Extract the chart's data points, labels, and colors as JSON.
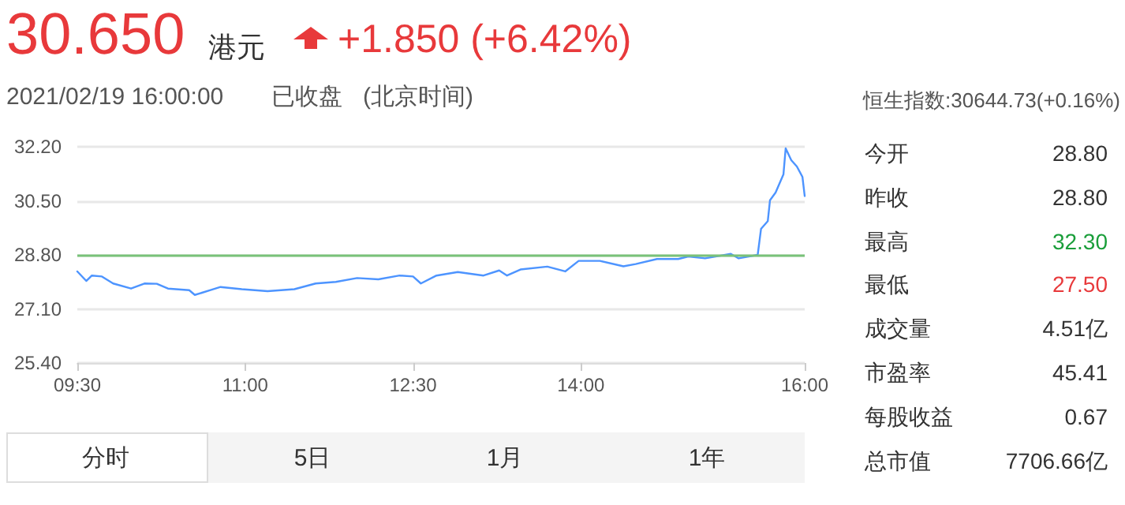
{
  "chart_data": {
    "type": "line",
    "title": "30.650",
    "annotations": [
      "港元",
      "+1.850 (+6.42%)",
      "2021/02/19 16:00:00",
      "已收盘",
      "(北京时间)",
      "恒生指数:30644.73(+0.16%)",
      "今开",
      "28.80",
      "昨收",
      "28.80",
      "最高",
      "32.30",
      "最低",
      "27.50",
      "成交量",
      "4.51亿",
      "市盈率",
      "45.41",
      "每股收益",
      "0.67",
      "总市值",
      "7706.66亿",
      "分时",
      "5日",
      "1月",
      "1年"
    ],
    "x": [
      9.5,
      9.58,
      9.63,
      9.72,
      9.82,
      9.98,
      10.1,
      10.21,
      10.31,
      10.5,
      10.55,
      10.69,
      10.78,
      10.97,
      11.2,
      11.44,
      11.63,
      11.81,
      12.0,
      12.19,
      12.38,
      12.5,
      12.57,
      12.71,
      12.9,
      13.13,
      13.27,
      13.34,
      13.46,
      13.7,
      13.86,
      13.98,
      14.17,
      14.38,
      14.49,
      14.68,
      14.87,
      14.96,
      15.11,
      15.34,
      15.41,
      15.58,
      15.61,
      15.67,
      15.69,
      15.74,
      15.81,
      15.83,
      15.88,
      15.93,
      15.98,
      16.0
    ],
    "series": [
      {
        "color": "#4d94ff",
        "values": [
          28.28,
          27.98,
          28.15,
          28.12,
          27.9,
          27.74,
          27.9,
          27.89,
          27.74,
          27.69,
          27.54,
          27.69,
          27.79,
          27.72,
          27.66,
          27.72,
          27.9,
          27.95,
          28.07,
          28.03,
          28.15,
          28.12,
          27.9,
          28.15,
          28.26,
          28.15,
          28.31,
          28.15,
          28.34,
          28.43,
          28.28,
          28.61,
          28.61,
          28.44,
          28.51,
          28.67,
          28.67,
          28.75,
          28.69,
          28.83,
          28.69,
          28.8,
          29.62,
          29.86,
          30.52,
          30.76,
          31.33,
          32.15,
          31.78,
          31.58,
          31.25,
          30.65
        ]
      }
    ],
    "xlim": [
      9.5,
      16.0
    ],
    "xticks": [
      {
        "value": 9.5,
        "label": "09:30"
      },
      {
        "value": 11,
        "label": "11:00"
      },
      {
        "value": 12.5,
        "label": "12:30"
      },
      {
        "value": 14,
        "label": "14:00"
      },
      {
        "value": 16,
        "label": "16:00"
      }
    ],
    "ylim": [
      25.4,
      32.2
    ],
    "yticks": [
      {
        "value": 25.4,
        "label": "25.40"
      },
      {
        "value": 27.1,
        "label": "27.10"
      },
      {
        "value": 28.8,
        "label": "28.80"
      },
      {
        "value": 30.5,
        "label": "30.50"
      },
      {
        "value": 32.2,
        "label": "32.20"
      }
    ],
    "ref_lines": [
      {
        "axis": "y",
        "value": 28.8,
        "color": "#79c279"
      }
    ],
    "grid": "y",
    "marker": "none",
    "line_style": "solid"
  }
}
